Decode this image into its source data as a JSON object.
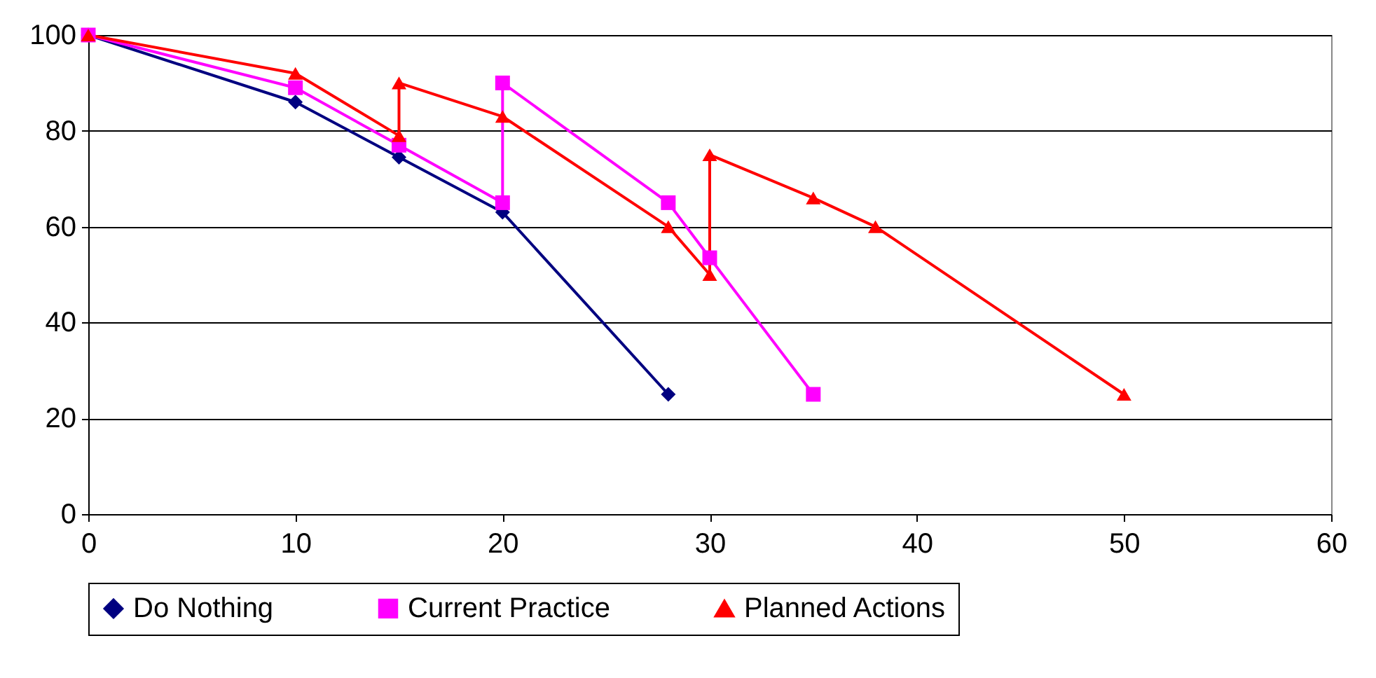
{
  "chart_data": {
    "type": "line",
    "xlim": [
      0,
      60
    ],
    "xticks": [
      0,
      10,
      20,
      30,
      40,
      50,
      60
    ],
    "ylim": [
      0,
      100
    ],
    "yticks": [
      0,
      20,
      40,
      60,
      80,
      100
    ],
    "grid": "y",
    "legend": "bottom",
    "series": [
      {
        "name": "Do Nothing",
        "color": "#000080",
        "marker": "diamond",
        "x": [
          0,
          10,
          15,
          20,
          28
        ],
        "values": [
          100,
          86,
          74.5,
          63,
          25
        ]
      },
      {
        "name": "Current Practice",
        "color": "#ff00ff",
        "marker": "square",
        "x": [
          0,
          10,
          15,
          20,
          20,
          28,
          30,
          35
        ],
        "values": [
          100,
          89,
          77,
          65,
          90,
          65,
          53.5,
          25
        ]
      },
      {
        "name": "Planned Actions",
        "color": "#ff0000",
        "marker": "triangle",
        "x": [
          0,
          10,
          15,
          15,
          20,
          28,
          30,
          30,
          35,
          38,
          50
        ],
        "values": [
          100,
          92,
          79,
          90,
          83,
          60,
          50,
          75,
          66,
          60,
          25
        ]
      }
    ]
  }
}
